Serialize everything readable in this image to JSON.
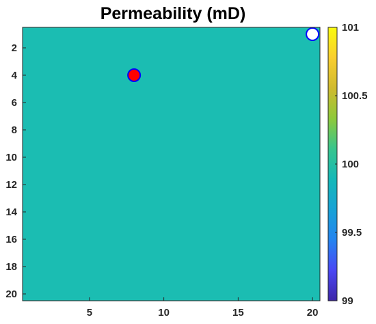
{
  "chart_data": {
    "type": "heatmap",
    "title": "Permeability (mD)",
    "xlabel": "",
    "ylabel": "",
    "grid": false,
    "x_range": [
      0.5,
      20.5
    ],
    "y_range": [
      0.5,
      20.5
    ],
    "y_reversed": true,
    "x_ticks": [
      5,
      10,
      15,
      20
    ],
    "y_ticks": [
      2,
      4,
      6,
      8,
      10,
      12,
      14,
      16,
      18,
      20
    ],
    "grid_size": [
      20,
      20
    ],
    "field_value": 100,
    "field_color": "#1bbdb2",
    "colorbar": {
      "range": [
        99,
        101
      ],
      "ticks": [
        99,
        99.5,
        100,
        100.5,
        101
      ],
      "tick_labels": [
        "99",
        "99.5",
        "100",
        "100.5",
        "101"
      ],
      "colormap": "parula",
      "stops": [
        "#3e26a8",
        "#4a47f4",
        "#2484f0",
        "#17a2d6",
        "#14b8b8",
        "#37c58d",
        "#8ec93a",
        "#d0ba2e",
        "#f9ce2e",
        "#f9fb0e"
      ]
    },
    "wells": [
      {
        "x": 8,
        "y": 4,
        "fill": "#ff0000",
        "edge": "#0000ff"
      },
      {
        "x": 20,
        "y": 1,
        "fill": "#ffffff",
        "edge": "#0000ff"
      }
    ]
  }
}
